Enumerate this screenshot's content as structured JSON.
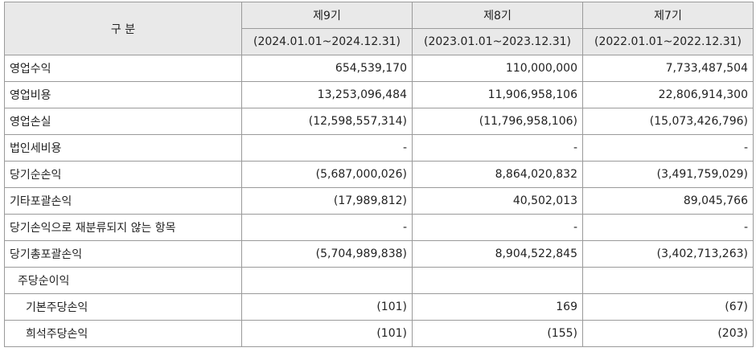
{
  "header": {
    "category": "구 분",
    "periods": [
      {
        "name": "제9기",
        "range": "(2024.01.01~2024.12.31)"
      },
      {
        "name": "제8기",
        "range": "(2023.01.01~2023.12.31)"
      },
      {
        "name": "제7기",
        "range": "(2022.01.01~2022.12.31)"
      }
    ]
  },
  "rows": [
    {
      "label": "영업수익",
      "values": [
        "654,539,170",
        "110,000,000",
        "7,733,487,504"
      ]
    },
    {
      "label": "영업비용",
      "values": [
        "13,253,096,484",
        "11,906,958,106",
        "22,806,914,300"
      ]
    },
    {
      "label": "영업손실",
      "values": [
        "(12,598,557,314)",
        "(11,796,958,106)",
        "(15,073,426,796)"
      ]
    },
    {
      "label": "법인세비용",
      "values": [
        "-",
        "-",
        "-"
      ]
    },
    {
      "label": "당기순손익",
      "values": [
        "(5,687,000,026)",
        "8,864,020,832",
        "(3,491,759,029)"
      ]
    },
    {
      "label": "기타포괄손익",
      "values": [
        "(17,989,812)",
        "40,502,013",
        "89,045,766"
      ]
    },
    {
      "label": "당기손익으로 재분류되지 않는 항목",
      "values": [
        "-",
        "-",
        "-"
      ]
    },
    {
      "label": "당기총포괄손익",
      "values": [
        "(5,704,989,838)",
        "8,904,522,845",
        "(3,402,713,263)"
      ]
    },
    {
      "label": "주당순이익",
      "values": [
        "",
        "",
        ""
      ]
    },
    {
      "label": "기본주당손익",
      "values": [
        "(101)",
        "169",
        "(67)"
      ]
    },
    {
      "label": "희석주당손익",
      "values": [
        "(101)",
        "(155)",
        "(203)"
      ]
    }
  ]
}
